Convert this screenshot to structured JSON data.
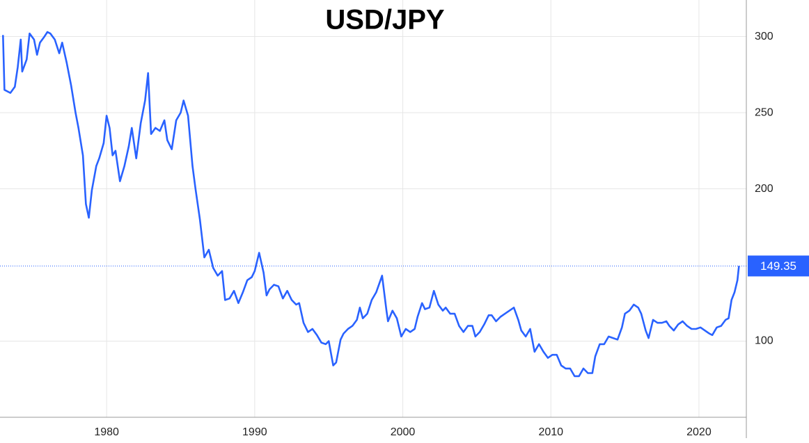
{
  "chart_data": {
    "type": "line",
    "title": "USD/JPY",
    "color": "#2962ff",
    "x": [
      1973.0,
      1973.1,
      1973.5,
      1973.8,
      1974.0,
      1974.2,
      1974.3,
      1974.6,
      1974.8,
      1975.1,
      1975.3,
      1975.5,
      1975.8,
      1976.0,
      1976.2,
      1976.5,
      1976.8,
      1977.0,
      1977.3,
      1977.6,
      1977.9,
      1978.1,
      1978.4,
      1978.6,
      1978.8,
      1979.0,
      1979.3,
      1979.5,
      1979.8,
      1980.0,
      1980.2,
      1980.4,
      1980.6,
      1980.9,
      1981.2,
      1981.5,
      1981.7,
      1982.0,
      1982.3,
      1982.6,
      1982.8,
      1983.0,
      1983.3,
      1983.6,
      1983.9,
      1984.1,
      1984.4,
      1984.7,
      1985.0,
      1985.2,
      1985.5,
      1985.8,
      1986.0,
      1986.3,
      1986.6,
      1986.9,
      1987.2,
      1987.5,
      1987.8,
      1988.0,
      1988.3,
      1988.6,
      1988.9,
      1989.2,
      1989.5,
      1989.8,
      1990.0,
      1990.3,
      1990.6,
      1990.8,
      1991.0,
      1991.3,
      1991.6,
      1991.9,
      1992.2,
      1992.5,
      1992.8,
      1993.0,
      1993.3,
      1993.6,
      1993.9,
      1994.2,
      1994.5,
      1994.8,
      1995.0,
      1995.3,
      1995.5,
      1995.8,
      1996.0,
      1996.3,
      1996.6,
      1996.9,
      1997.1,
      1997.3,
      1997.6,
      1997.9,
      1998.2,
      1998.6,
      1998.9,
      1999.0,
      1999.3,
      1999.6,
      1999.9,
      2000.2,
      2000.5,
      2000.8,
      2001.0,
      2001.3,
      2001.5,
      2001.8,
      2002.1,
      2002.4,
      2002.7,
      2002.9,
      2003.2,
      2003.5,
      2003.8,
      2004.1,
      2004.4,
      2004.7,
      2004.9,
      2005.2,
      2005.5,
      2005.8,
      2006.0,
      2006.3,
      2006.6,
      2006.9,
      2007.2,
      2007.5,
      2007.8,
      2008.0,
      2008.3,
      2008.6,
      2008.9,
      2009.2,
      2009.5,
      2009.8,
      2010.1,
      2010.4,
      2010.7,
      2011.0,
      2011.3,
      2011.6,
      2011.9,
      2012.2,
      2012.5,
      2012.8,
      2013.0,
      2013.3,
      2013.6,
      2013.9,
      2014.2,
      2014.5,
      2014.8,
      2015.0,
      2015.3,
      2015.6,
      2015.9,
      2016.1,
      2016.4,
      2016.6,
      2016.9,
      2017.2,
      2017.5,
      2017.8,
      2018.0,
      2018.3,
      2018.6,
      2018.9,
      2019.2,
      2019.5,
      2019.8,
      2020.1,
      2020.4,
      2020.7,
      2020.9,
      2021.2,
      2021.5,
      2021.8,
      2022.0,
      2022.2,
      2022.4,
      2022.6,
      2022.7
    ],
    "values": [
      301,
      265,
      263,
      267,
      280,
      298,
      277,
      285,
      302,
      298,
      288,
      296,
      300,
      303,
      302,
      298,
      289,
      296,
      283,
      268,
      250,
      240,
      222,
      190,
      181,
      199,
      215,
      220,
      230,
      248,
      240,
      222,
      225,
      205,
      215,
      228,
      240,
      220,
      243,
      258,
      276,
      236,
      240,
      238,
      245,
      232,
      226,
      245,
      250,
      258,
      248,
      215,
      200,
      180,
      155,
      160,
      148,
      143,
      146,
      127,
      128,
      133,
      125,
      132,
      140,
      142,
      146,
      158,
      145,
      130,
      134,
      137,
      136,
      128,
      133,
      127,
      124,
      125,
      112,
      106,
      108,
      104,
      99,
      98,
      100,
      84,
      86,
      101,
      105,
      108,
      110,
      114,
      122,
      115,
      118,
      127,
      132,
      143,
      120,
      113,
      120,
      115,
      103,
      108,
      106,
      108,
      116,
      125,
      121,
      122,
      133,
      124,
      120,
      122,
      118,
      118,
      110,
      106,
      110,
      110,
      103,
      106,
      111,
      117,
      117,
      113,
      116,
      118,
      120,
      122,
      114,
      107,
      103,
      108,
      93,
      98,
      93,
      89,
      91,
      91,
      84,
      82,
      82,
      77,
      77,
      82,
      79,
      79,
      90,
      98,
      98,
      103,
      102,
      101,
      109,
      118,
      120,
      124,
      122,
      118,
      107,
      102,
      114,
      112,
      112,
      113,
      110,
      107,
      111,
      113,
      110,
      108,
      108,
      109,
      107,
      105,
      104,
      109,
      110,
      114,
      115,
      127,
      132,
      140,
      149.35
    ],
    "xlim": [
      1972.8,
      2023.2
    ],
    "xticks": [
      1980,
      1990,
      2000,
      2010,
      2020
    ],
    "ylim": [
      50,
      324
    ],
    "yticks": [
      100,
      200,
      250,
      300
    ],
    "current_value": 149.35,
    "grid": true
  }
}
